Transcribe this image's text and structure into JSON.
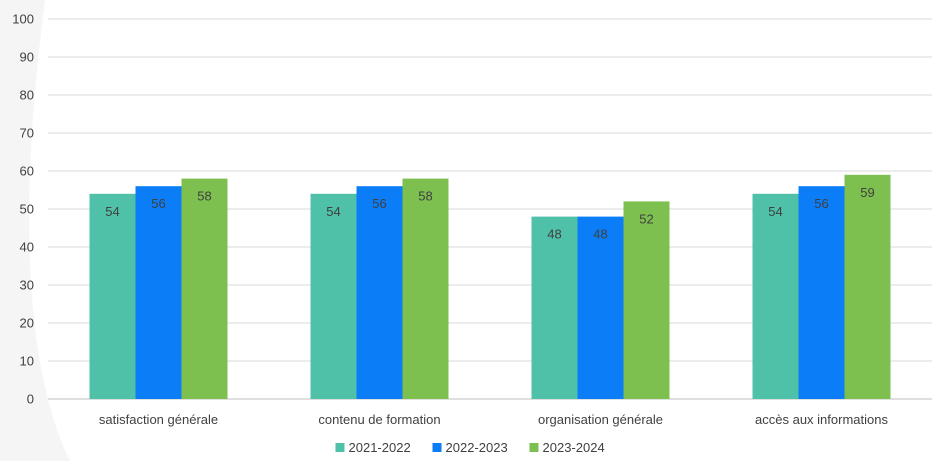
{
  "chart_data": {
    "type": "bar",
    "categories": [
      "satisfaction générale",
      "contenu de formation",
      "organisation générale",
      "accès aux informations"
    ],
    "series": [
      {
        "name": "2021-2022",
        "color": "#4fc1a9",
        "values": [
          54,
          54,
          48,
          54
        ]
      },
      {
        "name": "2022-2023",
        "color": "#0a7df7",
        "values": [
          56,
          56,
          48,
          56
        ]
      },
      {
        "name": "2023-2024",
        "color": "#7dc04f",
        "values": [
          58,
          58,
          52,
          59
        ]
      }
    ],
    "ylim": [
      0,
      100
    ],
    "yticks": [
      "0",
      "10",
      "20",
      "30",
      "40",
      "50",
      "60",
      "70",
      "80",
      "90",
      "100"
    ],
    "grid": true,
    "legend_position": "bottom",
    "data_labels": true
  }
}
